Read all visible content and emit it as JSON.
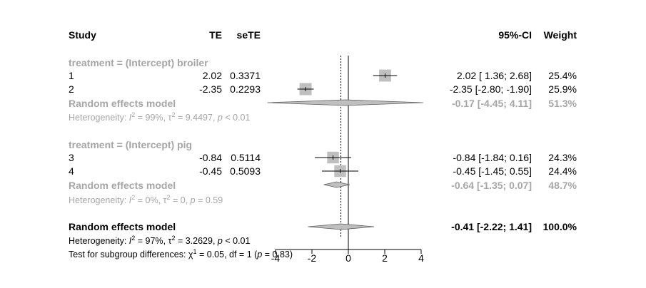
{
  "chart_data": {
    "type": "forest",
    "header": {
      "study": "Study",
      "te": "TE",
      "sete": "seTE",
      "ci": "95%-CI",
      "weight": "Weight"
    },
    "x_axis": {
      "ticks": [
        -4,
        -2,
        0,
        2,
        4
      ],
      "tick_labels": [
        "-4",
        "-2",
        "0",
        "2",
        "4"
      ],
      "xlim": [
        -4,
        4
      ],
      "reference": 0
    },
    "groups": [
      {
        "label": "treatment = (Intercept) broiler",
        "studies": [
          {
            "name": "1",
            "te": 2.02,
            "sete": 0.3371,
            "te_label": "2.02",
            "sete_label": "0.3371",
            "lower": 1.36,
            "upper": 2.68,
            "ci_label": "2.02  [ 1.36;  2.68]",
            "weight": 25.4,
            "weight_label": "25.4%"
          },
          {
            "name": "2",
            "te": -2.35,
            "sete": 0.2293,
            "te_label": "-2.35",
            "sete_label": "0.2293",
            "lower": -2.8,
            "upper": -1.9,
            "ci_label": "-2.35  [-2.80; -1.90]",
            "weight": 25.9,
            "weight_label": "25.9%"
          }
        ],
        "pooled": {
          "label": "Random effects model",
          "est": -0.17,
          "lower": -4.45,
          "upper": 4.11,
          "ci_label": "-0.17  [-4.45;  4.11]",
          "weight_label": "51.3%"
        },
        "heterogeneity": {
          "i2": "99%",
          "tau2": "9.4497",
          "p": "< 0.01"
        }
      },
      {
        "label": "treatment = (Intercept) pig",
        "studies": [
          {
            "name": "3",
            "te": -0.84,
            "sete": 0.5114,
            "te_label": "-0.84",
            "sete_label": "0.5114",
            "lower": -1.84,
            "upper": 0.16,
            "ci_label": "-0.84  [-1.84;  0.16]",
            "weight": 24.3,
            "weight_label": "24.3%"
          },
          {
            "name": "4",
            "te": -0.45,
            "sete": 0.5093,
            "te_label": "-0.45",
            "sete_label": "0.5093",
            "lower": -1.45,
            "upper": 0.55,
            "ci_label": "-0.45  [-1.45;  0.55]",
            "weight": 24.4,
            "weight_label": "24.4%"
          }
        ],
        "pooled": {
          "label": "Random effects model",
          "est": -0.64,
          "lower": -1.35,
          "upper": 0.07,
          "ci_label": "-0.64  [-1.35;  0.07]",
          "weight_label": "48.7%"
        },
        "heterogeneity": {
          "i2": "0%",
          "tau2": "0",
          "p": "= 0.59"
        }
      }
    ],
    "overall": {
      "label": "Random effects model",
      "est": -0.41,
      "lower": -2.22,
      "upper": 1.41,
      "ci_label": "-0.41  [-2.22;  1.41]",
      "weight_label": "100.0%",
      "heterogeneity": {
        "i2": "97%",
        "tau2": "3.2629",
        "p": "< 0.01"
      },
      "subgroup_test": {
        "chi2": "0.05",
        "df": "1",
        "p": "0.83"
      }
    },
    "colors": {
      "square": "#bfbfbf",
      "diamond": "#bfbfbf",
      "group_text": "#a6a6a6",
      "text": "#000000"
    }
  }
}
